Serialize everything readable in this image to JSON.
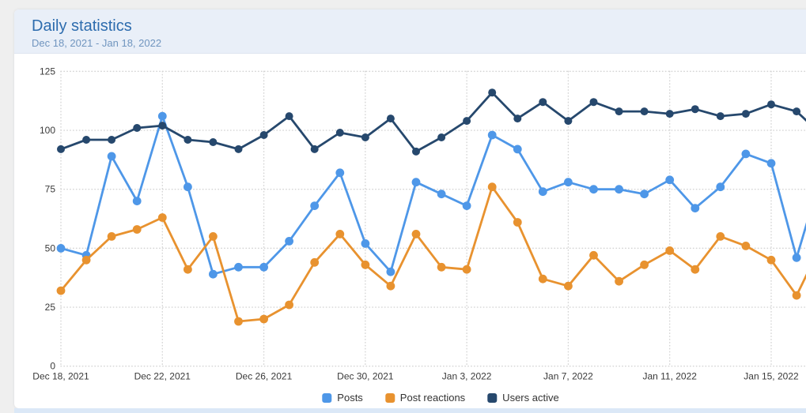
{
  "card": {
    "title": "Daily statistics",
    "subtitle": "Dec 18, 2021 - Jan 18, 2022"
  },
  "colors": {
    "page_bg": "#efefef",
    "card_bg": "#ffffff",
    "header_bg": "#e9eff8",
    "title_text": "#2d6cae",
    "subtitle_text": "#7095bf",
    "axis_text": "#3a3a3a",
    "gridline": "#d4d4d4",
    "below_card_strip": "#dbe8f7",
    "posts": "#4e97e8",
    "post_reactions": "#e8922f",
    "users_active": "#26486d"
  },
  "chart_data": {
    "type": "line",
    "x": [
      "Dec 18",
      "Dec 19",
      "Dec 20",
      "Dec 21",
      "Dec 22",
      "Dec 23",
      "Dec 24",
      "Dec 25",
      "Dec 26",
      "Dec 27",
      "Dec 28",
      "Dec 29",
      "Dec 30",
      "Dec 31",
      "Jan 1",
      "Jan 2",
      "Jan 3",
      "Jan 4",
      "Jan 5",
      "Jan 6",
      "Jan 7",
      "Jan 8",
      "Jan 9",
      "Jan 10",
      "Jan 11",
      "Jan 12",
      "Jan 13",
      "Jan 14",
      "Jan 15",
      "Jan 16"
    ],
    "x_tick_labels": [
      "Dec 18, 2021",
      "Dec 22, 2021",
      "Dec 26, 2021",
      "Dec 30, 2021",
      "Jan 3, 2022",
      "Jan 7, 2022",
      "Jan 11, 2022",
      "Jan 15, 2022"
    ],
    "x_tick_every": 4,
    "y_ticks": [
      0,
      25,
      50,
      75,
      100,
      125
    ],
    "ylim": [
      0,
      125
    ],
    "grid": "dotted horizontal and vertical",
    "legend_position": "bottom-center",
    "series": [
      {
        "name": "Posts",
        "color": "#4e97e8",
        "marker_radius": 5.4,
        "values": [
          50,
          47,
          89,
          70,
          106,
          76,
          39,
          42,
          42,
          53,
          68,
          82,
          52,
          40,
          78,
          73,
          68,
          98,
          92,
          74,
          78,
          75,
          75,
          73,
          79,
          67,
          76,
          90,
          86,
          46
        ]
      },
      {
        "name": "Post reactions",
        "color": "#e8922f",
        "marker_radius": 5.4,
        "values": [
          32,
          45,
          55,
          58,
          63,
          41,
          55,
          19,
          20,
          26,
          44,
          56,
          43,
          34,
          56,
          42,
          41,
          76,
          61,
          37,
          34,
          47,
          36,
          43,
          49,
          41,
          55,
          51,
          45,
          30
        ]
      },
      {
        "name": "Users active",
        "color": "#26486d",
        "marker_radius": 5.0,
        "values": [
          92,
          96,
          96,
          101,
          102,
          96,
          95,
          92,
          98,
          106,
          92,
          99,
          97,
          105,
          91,
          97,
          104,
          116,
          105,
          112,
          104,
          112,
          108,
          108,
          107,
          109,
          106,
          107,
          111,
          108
        ]
      }
    ],
    "clipped_continuation": {
      "note": "lines visibly continue past the cropped right edge toward the next day",
      "values": {
        "Posts": 82,
        "Post reactions": 52,
        "Users active": 98
      }
    }
  }
}
